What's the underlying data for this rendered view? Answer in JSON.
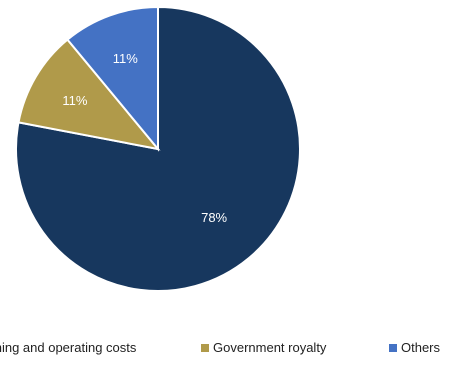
{
  "chart_data": {
    "type": "pie",
    "slices": [
      {
        "label": "Mining and operating costs",
        "value": 78,
        "display": "78%",
        "color": "#17375e"
      },
      {
        "label": "Government royalty",
        "value": 11,
        "display": "11%",
        "color": "#b09a4a"
      },
      {
        "label": "Others",
        "value": 11,
        "display": "11%",
        "color": "#4472c4"
      }
    ],
    "legend_position": "bottom",
    "start_angle": "12 o'clock",
    "direction": "clockwise"
  }
}
